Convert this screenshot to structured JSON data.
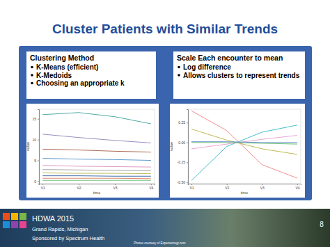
{
  "slide": {
    "title": "Cluster Patients with Similar Trends",
    "boxes": [
      {
        "heading": "Clustering Method",
        "bullets": [
          "K-Means (efficient)",
          "K-Medoids",
          "Choosing an appropriate k"
        ]
      },
      {
        "heading": "Scale Each encounter to mean",
        "bullets": [
          "Log difference",
          "Allows clusters to represent trends"
        ]
      }
    ],
    "footer": {
      "event": "HDWA 2015",
      "place": "Grand Rapids, Michigan",
      "sponsor": "Sponsored by Spectrum Health",
      "credit": "Photos courtesy of Experiencegr.com",
      "page": "8"
    }
  },
  "chart_data": [
    {
      "type": "line",
      "x_label": "time",
      "y_label": "value",
      "categories": [
        "V1",
        "V2",
        "V3",
        "V4"
      ],
      "ylim": [
        -0.6,
        17.3
      ],
      "yticks": [
        0,
        5,
        10,
        15
      ],
      "grid": false,
      "series": [
        {
          "color": "#3a9e9a",
          "values": [
            16.0,
            16.5,
            15.5,
            13.8
          ]
        },
        {
          "color": "#8d7fb8",
          "values": [
            11.3,
            10.5,
            9.8,
            9.2
          ]
        },
        {
          "color": "#a35a3c",
          "values": [
            7.7,
            7.5,
            7.2,
            7.0
          ]
        },
        {
          "color": "#4f8fc4",
          "values": [
            5.5,
            5.3,
            5.2,
            5.0
          ]
        },
        {
          "color": "#d98fbf",
          "values": [
            3.8,
            3.6,
            3.5,
            3.4
          ]
        },
        {
          "color": "#9a9a9a",
          "values": [
            2.8,
            2.7,
            2.6,
            2.5
          ]
        },
        {
          "color": "#b5b84a",
          "values": [
            2.0,
            1.9,
            1.9,
            1.8
          ]
        },
        {
          "color": "#2d5fa0",
          "values": [
            1.3,
            1.3,
            1.2,
            1.2
          ]
        },
        {
          "color": "#e07a5a",
          "values": [
            0.7,
            0.7,
            0.7,
            0.6
          ]
        },
        {
          "color": "#5bb56a",
          "values": [
            0.2,
            0.2,
            0.2,
            0.2
          ]
        }
      ]
    },
    {
      "type": "line",
      "x_label": "time",
      "y_label": "value",
      "categories": [
        "V1",
        "V2",
        "V3",
        "V4"
      ],
      "ylim": [
        -0.52,
        0.42
      ],
      "yticks": [
        {
          "value": -0.5,
          "label": "-0.50"
        },
        {
          "value": -0.25,
          "label": "-0.25"
        },
        {
          "value": 0,
          "label": "0.00"
        },
        {
          "value": 0.25,
          "label": "0.25"
        }
      ],
      "grid": false,
      "series": [
        {
          "color": "#f08080",
          "values": [
            0.4,
            0.15,
            -0.28,
            -0.45
          ]
        },
        {
          "color": "#2fb5c8",
          "values": [
            -0.48,
            -0.05,
            0.13,
            0.22
          ]
        },
        {
          "color": "#b8b040",
          "values": [
            0.17,
            0.03,
            -0.08,
            -0.15
          ]
        },
        {
          "color": "#e89ad6",
          "values": [
            -0.08,
            -0.02,
            0.04,
            0.09
          ]
        },
        {
          "color": "#5cb85c",
          "values": [
            0.0,
            0.0,
            -0.01,
            -0.02
          ]
        },
        {
          "color": "#5f8fd0",
          "values": [
            0.01,
            0.01,
            0.0,
            0.0
          ]
        }
      ]
    }
  ]
}
